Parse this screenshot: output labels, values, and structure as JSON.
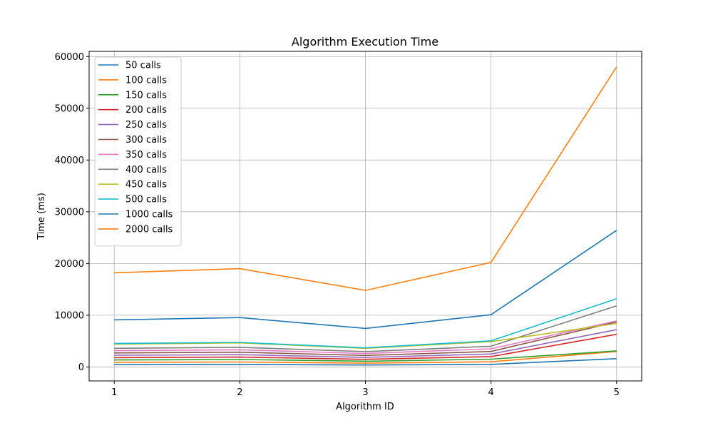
{
  "chart_data": {
    "type": "line",
    "title": "Algorithm Execution Time",
    "xlabel": "Algorithm ID",
    "ylabel": "Time (ms)",
    "x": [
      1,
      2,
      3,
      4,
      5
    ],
    "xticks": [
      "1",
      "2",
      "3",
      "4",
      "5"
    ],
    "yticks": [
      "0",
      "10000",
      "20000",
      "30000",
      "40000",
      "50000",
      "60000"
    ],
    "xlim": [
      0.8,
      5.2
    ],
    "ylim": [
      -2700,
      61000
    ],
    "grid": true,
    "legend_position": "top-left",
    "series": [
      {
        "name": "50 calls",
        "color": "#1f77b4",
        "values": [
          450,
          480,
          370,
          500,
          1600
        ]
      },
      {
        "name": "100 calls",
        "color": "#ff7f0e",
        "values": [
          900,
          950,
          740,
          1000,
          3000
        ]
      },
      {
        "name": "150 calls",
        "color": "#2ca02c",
        "values": [
          1350,
          1430,
          1110,
          1500,
          3100
        ]
      },
      {
        "name": "200 calls",
        "color": "#d62728",
        "values": [
          1800,
          1900,
          1480,
          2000,
          6300
        ]
      },
      {
        "name": "250 calls",
        "color": "#9467bd",
        "values": [
          2250,
          2380,
          1850,
          2500,
          7200
        ]
      },
      {
        "name": "300 calls",
        "color": "#8c564b",
        "values": [
          2700,
          2850,
          2220,
          3000,
          8700
        ]
      },
      {
        "name": "350 calls",
        "color": "#e377c2",
        "values": [
          3150,
          3330,
          2590,
          3500,
          8900
        ]
      },
      {
        "name": "400 calls",
        "color": "#7f7f7f",
        "values": [
          3600,
          3800,
          2960,
          4000,
          11800
        ]
      },
      {
        "name": "450 calls",
        "color": "#bcbd22",
        "values": [
          4400,
          4650,
          3600,
          4900,
          8400
        ]
      },
      {
        "name": "500 calls",
        "color": "#17becf",
        "values": [
          4550,
          4750,
          3700,
          5050,
          13200
        ]
      },
      {
        "name": "1000 calls",
        "color": "#1f77b4",
        "values": [
          9100,
          9550,
          7450,
          10100,
          26400
        ]
      },
      {
        "name": "2000 calls",
        "color": "#ff7f0e",
        "values": [
          18200,
          19000,
          14800,
          20200,
          58000
        ]
      }
    ]
  }
}
